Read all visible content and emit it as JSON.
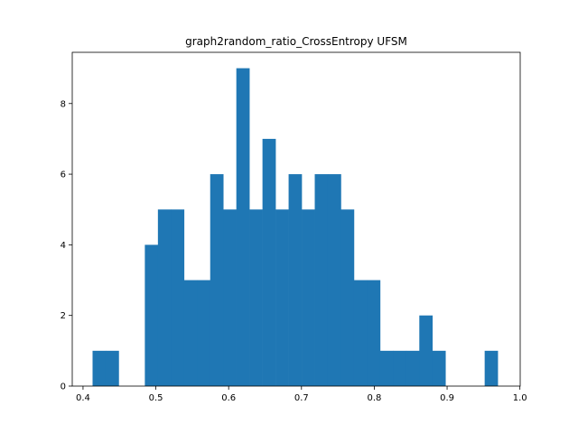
{
  "chart_data": {
    "type": "bar",
    "title": "graph2random_ratio_CrossEntropy UFSM",
    "xlabel": "",
    "ylabel": "",
    "bar_color": "#1f77b4",
    "bins": {
      "start": 0.4131,
      "width": 0.01795,
      "counts": [
        1,
        1,
        0,
        0,
        4,
        5,
        5,
        3,
        3,
        6,
        5,
        9,
        5,
        7,
        5,
        6,
        5,
        6,
        6,
        5,
        3,
        3,
        1,
        1,
        1,
        2,
        1,
        0,
        0,
        0,
        1
      ]
    },
    "xlim": [
      0.3852,
      1.0004
    ],
    "ylim": [
      0,
      9.45
    ],
    "xticks": [
      0.4,
      0.5,
      0.6,
      0.7,
      0.8,
      0.9,
      1.0
    ],
    "xtick_labels": [
      "0.4",
      "0.5",
      "0.6",
      "0.7",
      "0.8",
      "0.9",
      "1.0"
    ],
    "yticks": [
      0,
      2,
      4,
      6,
      8
    ],
    "ytick_labels": [
      "0",
      "2",
      "4",
      "6",
      "8"
    ]
  }
}
